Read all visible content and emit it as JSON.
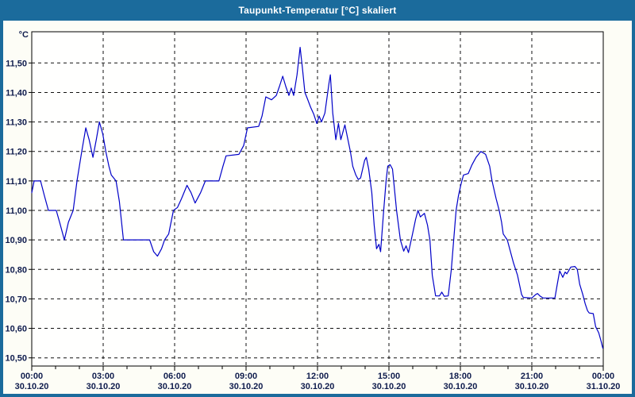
{
  "window": {
    "title": "Taupunkt-Temperatur [°C] skaliert"
  },
  "colors": {
    "titlebar": "#1b6b9c",
    "border": "#1b6b9c",
    "window_bg": "#fdfdf6",
    "plot_bg": "#fffffe",
    "frame": "#000000",
    "grid": "#111111",
    "label": "#0f1c4d",
    "line": "#0000c8"
  },
  "chart_data": {
    "type": "line",
    "title": "Taupunkt-Temperatur [°C] skaliert",
    "ylabel_unit": "°C",
    "ylim": [
      10.5,
      11.5
    ],
    "x_hours_range": [
      0,
      24
    ],
    "grid": "dashed",
    "legend": "none",
    "y_ticks": [
      {
        "value": 10.5,
        "label": "10,50"
      },
      {
        "value": 10.6,
        "label": "10,60"
      },
      {
        "value": 10.7,
        "label": "10,70"
      },
      {
        "value": 10.8,
        "label": "10,80"
      },
      {
        "value": 10.9,
        "label": "10,90"
      },
      {
        "value": 11.0,
        "label": "11,00"
      },
      {
        "value": 11.1,
        "label": "11,10"
      },
      {
        "value": 11.2,
        "label": "11,20"
      },
      {
        "value": 11.3,
        "label": "11,30"
      },
      {
        "value": 11.4,
        "label": "11,40"
      },
      {
        "value": 11.5,
        "label": "11,50"
      }
    ],
    "x_ticks": [
      {
        "hour": 0,
        "time": "00:00",
        "date": "30.10.20"
      },
      {
        "hour": 3,
        "time": "03:00",
        "date": "30.10.20"
      },
      {
        "hour": 6,
        "time": "06:00",
        "date": "30.10.20"
      },
      {
        "hour": 9,
        "time": "09:00",
        "date": "30.10.20"
      },
      {
        "hour": 12,
        "time": "12:00",
        "date": "30.10.20"
      },
      {
        "hour": 15,
        "time": "15:00",
        "date": "30.10.20"
      },
      {
        "hour": 18,
        "time": "18:00",
        "date": "30.10.20"
      },
      {
        "hour": 21,
        "time": "21:00",
        "date": "30.10.20"
      },
      {
        "hour": 24,
        "time": "00:00",
        "date": "31.10.20"
      }
    ],
    "series": [
      {
        "name": "Taupunkt",
        "points": [
          [
            0.0,
            11.06
          ],
          [
            0.1,
            11.1
          ],
          [
            0.37,
            11.1
          ],
          [
            0.53,
            11.05
          ],
          [
            0.7,
            11.0
          ],
          [
            1.03,
            11.0
          ],
          [
            1.17,
            10.96
          ],
          [
            1.37,
            10.9
          ],
          [
            1.54,
            10.96
          ],
          [
            1.74,
            11.0
          ],
          [
            1.9,
            11.1
          ],
          [
            2.1,
            11.2
          ],
          [
            2.27,
            11.28
          ],
          [
            2.41,
            11.24
          ],
          [
            2.57,
            11.18
          ],
          [
            2.71,
            11.24
          ],
          [
            2.84,
            11.3
          ],
          [
            2.98,
            11.26
          ],
          [
            3.11,
            11.2
          ],
          [
            3.24,
            11.15
          ],
          [
            3.34,
            11.12
          ],
          [
            3.54,
            11.1
          ],
          [
            3.68,
            11.03
          ],
          [
            3.85,
            10.9
          ],
          [
            4.95,
            10.9
          ],
          [
            5.12,
            10.86
          ],
          [
            5.28,
            10.845
          ],
          [
            5.45,
            10.87
          ],
          [
            5.58,
            10.9
          ],
          [
            5.75,
            10.92
          ],
          [
            5.95,
            11.0
          ],
          [
            6.12,
            11.01
          ],
          [
            6.29,
            11.04
          ],
          [
            6.52,
            11.085
          ],
          [
            6.69,
            11.06
          ],
          [
            6.86,
            11.025
          ],
          [
            7.09,
            11.06
          ],
          [
            7.29,
            11.1
          ],
          [
            7.86,
            11.1
          ],
          [
            8.03,
            11.15
          ],
          [
            8.16,
            11.185
          ],
          [
            8.7,
            11.19
          ],
          [
            8.9,
            11.22
          ],
          [
            9.06,
            11.28
          ],
          [
            9.53,
            11.285
          ],
          [
            9.67,
            11.32
          ],
          [
            9.83,
            11.385
          ],
          [
            10.07,
            11.375
          ],
          [
            10.27,
            11.39
          ],
          [
            10.4,
            11.42
          ],
          [
            10.54,
            11.455
          ],
          [
            10.67,
            11.42
          ],
          [
            10.8,
            11.39
          ],
          [
            10.9,
            11.415
          ],
          [
            11.0,
            11.39
          ],
          [
            11.14,
            11.46
          ],
          [
            11.27,
            11.553
          ],
          [
            11.37,
            11.48
          ],
          [
            11.47,
            11.4
          ],
          [
            11.57,
            11.38
          ],
          [
            11.71,
            11.35
          ],
          [
            11.84,
            11.327
          ],
          [
            11.97,
            11.295
          ],
          [
            12.07,
            11.32
          ],
          [
            12.17,
            11.3
          ],
          [
            12.31,
            11.33
          ],
          [
            12.48,
            11.43
          ],
          [
            12.54,
            11.46
          ],
          [
            12.64,
            11.33
          ],
          [
            12.77,
            11.24
          ],
          [
            12.88,
            11.295
          ],
          [
            12.98,
            11.24
          ],
          [
            13.15,
            11.29
          ],
          [
            13.38,
            11.2
          ],
          [
            13.48,
            11.15
          ],
          [
            13.61,
            11.12
          ],
          [
            13.71,
            11.105
          ],
          [
            13.81,
            11.11
          ],
          [
            13.98,
            11.17
          ],
          [
            14.05,
            11.18
          ],
          [
            14.15,
            11.14
          ],
          [
            14.28,
            11.06
          ],
          [
            14.38,
            10.95
          ],
          [
            14.48,
            10.87
          ],
          [
            14.58,
            10.885
          ],
          [
            14.65,
            10.86
          ],
          [
            14.78,
            11.0
          ],
          [
            14.88,
            11.1
          ],
          [
            14.95,
            11.15
          ],
          [
            15.05,
            11.155
          ],
          [
            15.15,
            11.14
          ],
          [
            15.32,
            11.0
          ],
          [
            15.48,
            10.9
          ],
          [
            15.62,
            10.862
          ],
          [
            15.72,
            10.88
          ],
          [
            15.82,
            10.857
          ],
          [
            15.99,
            10.92
          ],
          [
            16.12,
            10.97
          ],
          [
            16.22,
            11.0
          ],
          [
            16.32,
            10.978
          ],
          [
            16.49,
            10.99
          ],
          [
            16.62,
            10.95
          ],
          [
            16.72,
            10.9
          ],
          [
            16.82,
            10.78
          ],
          [
            16.96,
            10.71
          ],
          [
            17.12,
            10.71
          ],
          [
            17.22,
            10.723
          ],
          [
            17.32,
            10.709
          ],
          [
            17.49,
            10.71
          ],
          [
            17.62,
            10.8
          ],
          [
            17.72,
            10.9
          ],
          [
            17.82,
            11.0
          ],
          [
            17.92,
            11.05
          ],
          [
            18.03,
            11.09
          ],
          [
            18.13,
            11.12
          ],
          [
            18.33,
            11.125
          ],
          [
            18.49,
            11.155
          ],
          [
            18.66,
            11.18
          ],
          [
            18.86,
            11.2
          ],
          [
            19.06,
            11.19
          ],
          [
            19.23,
            11.15
          ],
          [
            19.33,
            11.1
          ],
          [
            19.5,
            11.04
          ],
          [
            19.63,
            11.0
          ],
          [
            19.73,
            10.96
          ],
          [
            19.8,
            10.92
          ],
          [
            19.97,
            10.9
          ],
          [
            20.07,
            10.87
          ],
          [
            20.23,
            10.822
          ],
          [
            20.4,
            10.78
          ],
          [
            20.57,
            10.715
          ],
          [
            20.64,
            10.705
          ],
          [
            21.0,
            10.703
          ],
          [
            21.17,
            10.715
          ],
          [
            21.24,
            10.718
          ],
          [
            21.34,
            10.71
          ],
          [
            21.47,
            10.703
          ],
          [
            21.97,
            10.703
          ],
          [
            22.07,
            10.75
          ],
          [
            22.17,
            10.795
          ],
          [
            22.3,
            10.773
          ],
          [
            22.4,
            10.791
          ],
          [
            22.47,
            10.785
          ],
          [
            22.64,
            10.808
          ],
          [
            22.81,
            10.81
          ],
          [
            22.91,
            10.8
          ],
          [
            23.01,
            10.75
          ],
          [
            23.14,
            10.715
          ],
          [
            23.24,
            10.684
          ],
          [
            23.34,
            10.66
          ],
          [
            23.41,
            10.652
          ],
          [
            23.58,
            10.65
          ],
          [
            23.68,
            10.606
          ],
          [
            23.81,
            10.585
          ],
          [
            23.91,
            10.556
          ],
          [
            23.98,
            10.533
          ]
        ]
      }
    ]
  }
}
